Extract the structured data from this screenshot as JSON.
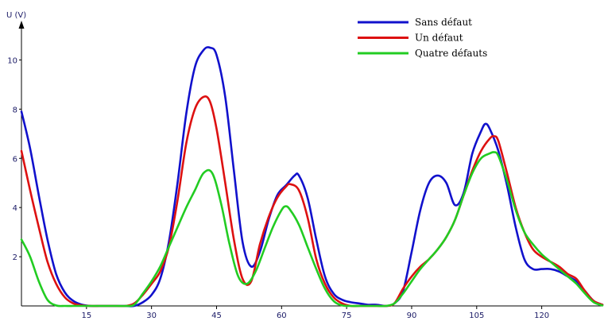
{
  "chart_data": {
    "type": "line",
    "title": "",
    "ylabel": "U (V)",
    "xlabel": "",
    "xlim": [
      0,
      134
    ],
    "ylim": [
      0,
      11.5
    ],
    "x_ticks": [
      15,
      30,
      45,
      60,
      75,
      90,
      105,
      120
    ],
    "y_ticks": [
      2,
      4,
      6,
      8,
      10
    ],
    "grid": false,
    "legend_position": "top-right",
    "series": [
      {
        "name": "Sans défaut",
        "color": "#1111cc",
        "x": [
          0,
          2,
          4,
          6,
          8,
          10,
          12,
          14,
          16,
          18,
          20,
          22,
          24,
          26,
          28,
          30,
          32,
          34,
          36,
          38,
          40,
          42,
          43.5,
          45,
          47,
          49,
          51,
          53,
          55,
          57,
          59,
          61,
          63,
          64,
          66,
          68,
          70,
          72,
          74,
          76,
          78,
          80,
          82,
          84,
          86,
          88,
          90,
          92,
          94,
          96,
          98,
          100,
          102,
          104,
          106,
          107,
          108,
          110,
          112,
          114,
          116,
          118,
          120,
          122,
          124,
          126,
          128,
          130,
          132,
          134
        ],
        "y": [
          7.9,
          6.4,
          4.5,
          2.7,
          1.3,
          0.55,
          0.2,
          0.05,
          0.0,
          0.0,
          0.0,
          0.0,
          0.0,
          0.0,
          0.15,
          0.45,
          1.1,
          2.6,
          5.0,
          7.8,
          9.7,
          10.4,
          10.5,
          10.2,
          8.5,
          5.5,
          2.6,
          1.6,
          2.2,
          3.5,
          4.5,
          4.9,
          5.3,
          5.3,
          4.4,
          2.7,
          1.2,
          0.5,
          0.25,
          0.15,
          0.1,
          0.05,
          0.05,
          0.0,
          0.1,
          0.6,
          2.2,
          3.9,
          5.0,
          5.3,
          5.0,
          4.1,
          4.6,
          6.2,
          7.1,
          7.4,
          7.2,
          6.3,
          4.9,
          3.2,
          1.9,
          1.5,
          1.5,
          1.5,
          1.4,
          1.2,
          1.0,
          0.6,
          0.2,
          0.05
        ]
      },
      {
        "name": "Un défaut",
        "color": "#dd1111",
        "x": [
          0,
          2,
          4,
          6,
          8,
          10,
          12,
          14,
          16,
          18,
          20,
          22,
          24,
          26,
          28,
          30,
          32,
          34,
          36,
          38,
          40,
          42,
          43.5,
          45,
          47,
          49,
          51,
          53,
          55,
          57,
          59,
          61,
          62,
          64,
          66,
          68,
          70,
          72,
          74,
          76,
          78,
          80,
          82,
          84,
          86,
          88,
          90,
          92,
          94,
          96,
          98,
          100,
          102,
          104,
          106,
          108,
          109,
          110,
          112,
          114,
          116,
          118,
          120,
          122,
          124,
          126,
          128,
          130,
          132,
          134
        ],
        "y": [
          6.3,
          4.7,
          3.2,
          1.8,
          0.9,
          0.35,
          0.1,
          0.02,
          0.0,
          0.0,
          0.0,
          0.0,
          0.0,
          0.1,
          0.45,
          0.9,
          1.4,
          2.4,
          4.3,
          6.6,
          8.0,
          8.5,
          8.3,
          7.2,
          5.0,
          2.7,
          1.1,
          1.0,
          2.5,
          3.6,
          4.4,
          4.85,
          4.95,
          4.7,
          3.6,
          1.9,
          0.9,
          0.35,
          0.1,
          0.0,
          0.0,
          0.0,
          0.0,
          0.0,
          0.1,
          0.7,
          1.2,
          1.6,
          1.9,
          2.3,
          2.8,
          3.5,
          4.5,
          5.5,
          6.3,
          6.8,
          6.9,
          6.7,
          5.4,
          4.0,
          3.0,
          2.3,
          2.0,
          1.8,
          1.6,
          1.3,
          1.1,
          0.6,
          0.2,
          0.05
        ]
      },
      {
        "name": "Quatre défauts",
        "color": "#22cc22",
        "x": [
          0,
          2,
          4,
          6,
          8,
          10,
          12,
          14,
          16,
          18,
          20,
          22,
          24,
          26,
          28,
          30,
          32,
          34,
          36,
          38,
          40,
          42,
          44,
          46,
          48,
          50,
          52,
          54,
          56,
          58,
          60,
          61,
          62,
          64,
          66,
          68,
          70,
          72,
          74,
          76,
          78,
          80,
          82,
          84,
          86,
          88,
          90,
          92,
          94,
          96,
          98,
          100,
          102,
          104,
          106,
          108,
          109,
          110,
          112,
          114,
          116,
          118,
          120,
          122,
          124,
          126,
          128,
          130,
          132,
          134
        ],
        "y": [
          2.7,
          2.0,
          1.0,
          0.25,
          0.02,
          0.0,
          0.0,
          0.0,
          0.0,
          0.0,
          0.0,
          0.0,
          0.0,
          0.05,
          0.5,
          1.0,
          1.6,
          2.4,
          3.2,
          4.0,
          4.7,
          5.4,
          5.4,
          4.2,
          2.5,
          1.2,
          0.9,
          1.4,
          2.3,
          3.2,
          3.9,
          4.05,
          3.9,
          3.3,
          2.4,
          1.5,
          0.7,
          0.2,
          0.02,
          0.0,
          0.0,
          0.0,
          0.0,
          0.0,
          0.1,
          0.5,
          1.0,
          1.5,
          1.9,
          2.3,
          2.8,
          3.5,
          4.5,
          5.4,
          6.0,
          6.2,
          6.25,
          6.1,
          5.1,
          3.9,
          3.0,
          2.5,
          2.1,
          1.8,
          1.5,
          1.2,
          0.9,
          0.5,
          0.15,
          0.02
        ]
      }
    ]
  }
}
